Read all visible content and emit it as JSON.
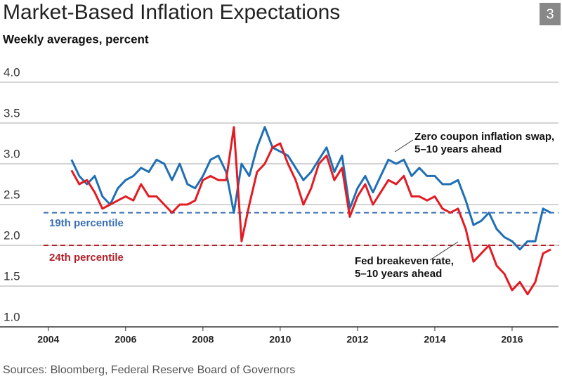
{
  "chart_data": {
    "type": "line",
    "title": "Market-Based Inflation Expectations",
    "figure_number": "3",
    "subtitle": "Weekly averages, percent",
    "source": "Sources: Bloomberg, Federal Reserve Board of Governors",
    "x": [
      2004.6,
      2004.8,
      2005.0,
      2005.2,
      2005.4,
      2005.6,
      2005.8,
      2006.0,
      2006.2,
      2006.4,
      2006.6,
      2006.8,
      2007.0,
      2007.2,
      2007.4,
      2007.6,
      2007.8,
      2008.0,
      2008.2,
      2008.4,
      2008.6,
      2008.8,
      2009.0,
      2009.2,
      2009.4,
      2009.6,
      2009.8,
      2010.0,
      2010.2,
      2010.4,
      2010.6,
      2010.8,
      2011.0,
      2011.2,
      2011.4,
      2011.6,
      2011.8,
      2012.0,
      2012.2,
      2012.4,
      2012.6,
      2012.8,
      2013.0,
      2013.2,
      2013.4,
      2013.6,
      2013.8,
      2014.0,
      2014.2,
      2014.4,
      2014.6,
      2014.8,
      2015.0,
      2015.2,
      2015.4,
      2015.6,
      2015.8,
      2016.0,
      2016.2,
      2016.4,
      2016.6,
      2016.8,
      2017.0
    ],
    "series": [
      {
        "name": "Zero coupon inflation swap, 5–10 years ahead",
        "color": "#1f6fb5",
        "values": [
          3.05,
          2.85,
          2.75,
          2.85,
          2.6,
          2.5,
          2.7,
          2.8,
          2.85,
          2.95,
          2.9,
          3.05,
          3.0,
          2.8,
          3.0,
          2.75,
          2.7,
          2.85,
          3.05,
          3.1,
          2.9,
          2.4,
          3.0,
          2.85,
          3.2,
          3.45,
          3.2,
          3.15,
          3.1,
          2.95,
          2.8,
          2.9,
          3.05,
          3.2,
          2.9,
          3.1,
          2.45,
          2.7,
          2.85,
          2.65,
          2.85,
          3.05,
          3.0,
          3.05,
          2.85,
          2.95,
          2.85,
          2.85,
          2.75,
          2.75,
          2.8,
          2.55,
          2.25,
          2.3,
          2.4,
          2.2,
          2.1,
          2.05,
          1.95,
          2.05,
          2.05,
          2.45,
          2.4
        ]
      },
      {
        "name": "Fed breakeven rate, 5–10 years ahead",
        "color": "#e31b23",
        "values": [
          2.92,
          2.75,
          2.8,
          2.65,
          2.45,
          2.5,
          2.55,
          2.6,
          2.55,
          2.75,
          2.6,
          2.6,
          2.5,
          2.4,
          2.5,
          2.5,
          2.55,
          2.8,
          2.85,
          2.8,
          2.8,
          3.45,
          2.05,
          2.5,
          2.9,
          3.0,
          3.2,
          3.25,
          3.0,
          2.8,
          2.5,
          2.7,
          3.0,
          3.1,
          2.8,
          2.95,
          2.35,
          2.6,
          2.75,
          2.5,
          2.65,
          2.8,
          2.75,
          2.85,
          2.6,
          2.6,
          2.55,
          2.6,
          2.45,
          2.4,
          2.45,
          2.2,
          1.8,
          1.9,
          2.0,
          1.75,
          1.65,
          1.45,
          1.55,
          1.4,
          1.55,
          1.9,
          1.95
        ]
      }
    ],
    "annotations": [
      {
        "lines": [
          "Zero coupon inflation swap,",
          "5–10 years ahead"
        ]
      },
      {
        "lines": [
          "Fed breakeven rate,",
          "5–10 years ahead"
        ]
      }
    ],
    "reference_lines": [
      {
        "label": "19th percentile",
        "value": 2.4,
        "color": "#3a6fb5"
      },
      {
        "label": "24th percentile",
        "value": 2.0,
        "color": "#b0222a"
      }
    ],
    "xlim": [
      2002.75,
      2017.2
    ],
    "xticks": [
      2004,
      2006,
      2008,
      2010,
      2012,
      2014,
      2016
    ],
    "ylim": [
      1.0,
      4.0
    ],
    "yticks": [
      {
        "value": 1.0,
        "label": "1.0"
      },
      {
        "value": 1.5,
        "label": "1.5"
      },
      {
        "value": 2.0,
        "label": "2.0"
      },
      {
        "value": 2.5,
        "label": "2.5"
      },
      {
        "value": 3.0,
        "label": "3.0"
      },
      {
        "value": 3.5,
        "label": "3.5"
      },
      {
        "value": 4.0,
        "label": "4.0"
      }
    ],
    "grid": true
  }
}
